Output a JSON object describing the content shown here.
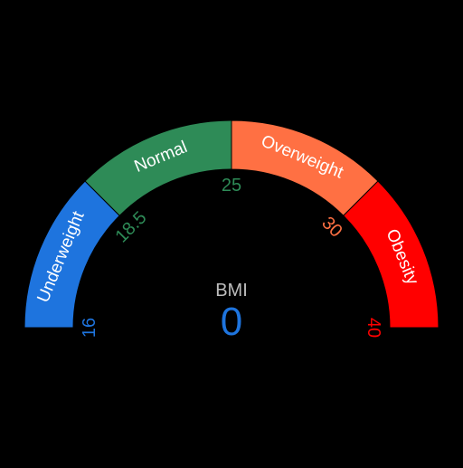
{
  "gauge": {
    "scale_min": 16,
    "scale_max": 40,
    "segments": [
      {
        "label": "Underweight",
        "from": 16,
        "to": 18.5,
        "color": "#1E74DE"
      },
      {
        "label": "Normal",
        "from": 18.5,
        "to": 25,
        "color": "#2E8B57"
      },
      {
        "label": "Overweight",
        "from": 25,
        "to": 30,
        "color": "#FF7043"
      },
      {
        "label": "Obesity",
        "from": 30,
        "to": 40,
        "color": "#FF0000"
      }
    ],
    "ticks": [
      {
        "label": "16",
        "value": 16,
        "color": "#1E74DE"
      },
      {
        "label": "18.5",
        "value": 18.5,
        "color": "#2E8B57"
      },
      {
        "label": "25",
        "value": 25,
        "color": "#2E8B57"
      },
      {
        "label": "30",
        "value": 30,
        "color": "#FF7043"
      },
      {
        "label": "40",
        "value": 40,
        "color": "#FF0000"
      }
    ],
    "readout": {
      "caption": "BMI",
      "value": "0",
      "caption_color": "#BDBDBD",
      "value_color": "#1E74DE"
    }
  }
}
